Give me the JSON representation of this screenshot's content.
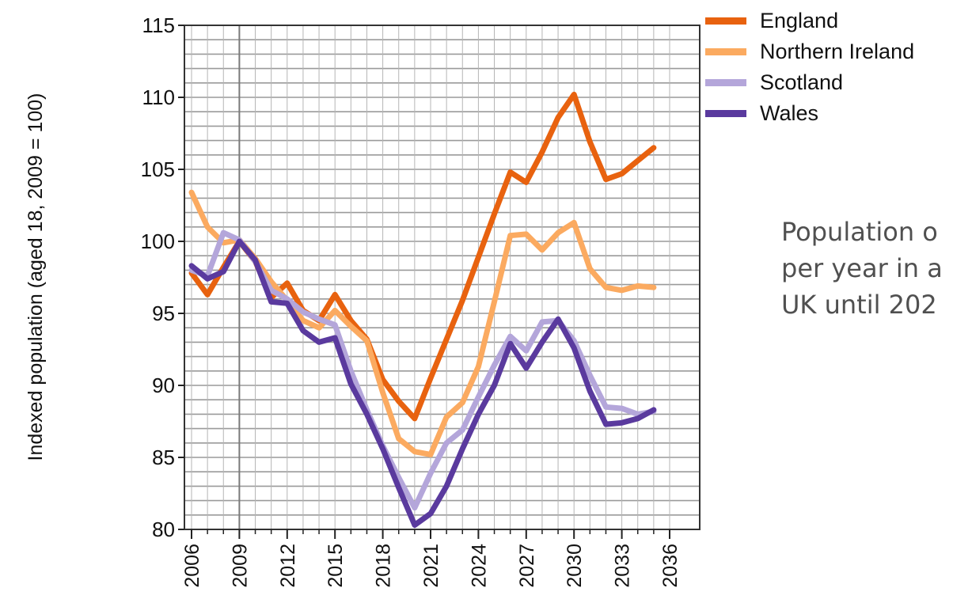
{
  "chart_data": {
    "type": "line",
    "title": "",
    "xlabel": "",
    "ylabel": "Indexed population (aged 18, 2009 = 100)",
    "x": [
      2006,
      2007,
      2008,
      2009,
      2010,
      2011,
      2012,
      2013,
      2014,
      2015,
      2016,
      2017,
      2018,
      2019,
      2020,
      2021,
      2022,
      2023,
      2024,
      2025,
      2026,
      2027,
      2028,
      2029,
      2030,
      2031,
      2032,
      2033,
      2034,
      2035
    ],
    "xticks": [
      "2006",
      "2009",
      "2012",
      "2015",
      "2018",
      "2021",
      "2024",
      "2027",
      "2030",
      "2033",
      "2036"
    ],
    "yticks": [
      "80",
      "85",
      "90",
      "95",
      "100",
      "105",
      "110",
      "115"
    ],
    "ylim": [
      80,
      115
    ],
    "xlim": [
      2006,
      2036
    ],
    "marked_year": 2009,
    "grid": true,
    "legend_position": "top-right",
    "series": [
      {
        "name": "England",
        "color": "#E8620F",
        "values": [
          97.8,
          96.3,
          98.2,
          100.0,
          98.6,
          96.1,
          97.1,
          95.2,
          94.5,
          96.3,
          94.5,
          93.2,
          90.4,
          88.9,
          87.7,
          90.5,
          93.2,
          95.9,
          98.9,
          101.9,
          104.8,
          104.1,
          106.2,
          108.6,
          110.2,
          106.9,
          104.3,
          104.7,
          105.6,
          106.5
        ]
      },
      {
        "name": "Northern Ireland",
        "color": "#FBAA60",
        "values": [
          103.4,
          101.0,
          99.9,
          100.1,
          98.8,
          97.2,
          95.9,
          94.5,
          94.0,
          95.2,
          94.1,
          93.1,
          89.5,
          86.3,
          85.4,
          85.2,
          87.8,
          88.8,
          91.3,
          95.8,
          100.4,
          100.5,
          99.4,
          100.6,
          101.3,
          98.1,
          96.8,
          96.6,
          96.9,
          96.8
        ]
      },
      {
        "name": "Scotland",
        "color": "#B4A6DA",
        "values": [
          98.0,
          97.6,
          100.6,
          100.1,
          98.6,
          96.6,
          96.0,
          95.1,
          94.6,
          94.2,
          91.0,
          88.3,
          85.8,
          83.6,
          81.5,
          83.9,
          86.0,
          86.9,
          89.2,
          91.4,
          93.4,
          92.4,
          94.4,
          94.5,
          93.1,
          90.7,
          88.5,
          88.4,
          88.0,
          88.2
        ]
      },
      {
        "name": "Wales",
        "color": "#5A3A9E",
        "values": [
          98.3,
          97.4,
          97.9,
          100.0,
          98.7,
          95.8,
          95.7,
          93.8,
          93.0,
          93.3,
          90.1,
          88.0,
          85.6,
          82.9,
          80.3,
          81.1,
          83.0,
          85.6,
          88.0,
          90.0,
          92.9,
          91.2,
          93.0,
          94.6,
          92.6,
          89.6,
          87.3,
          87.4,
          87.7,
          88.3
        ]
      }
    ]
  },
  "side_text": {
    "line1": "Population o",
    "line2": "per year in a",
    "line3": "UK until 202"
  }
}
